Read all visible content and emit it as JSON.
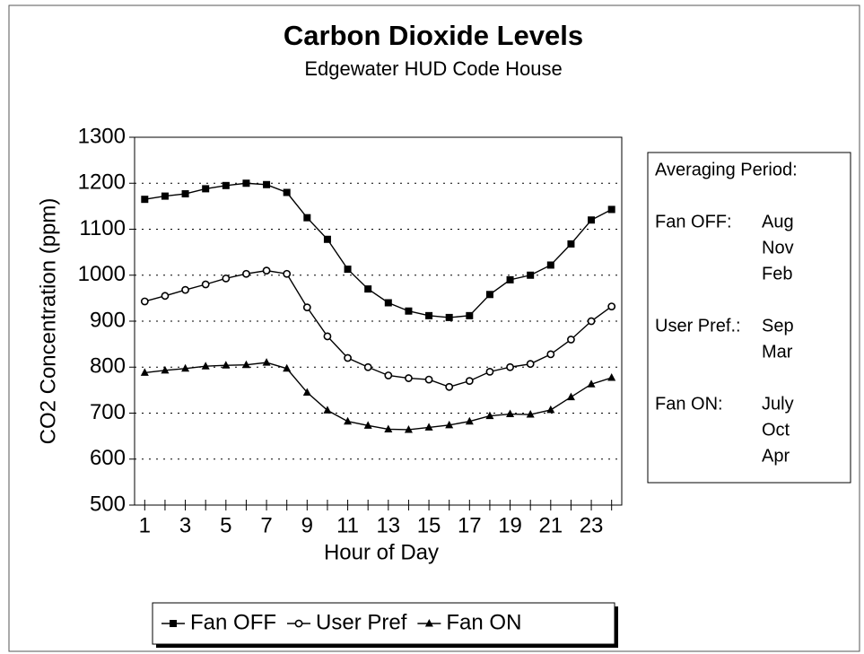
{
  "chart_data": {
    "type": "line",
    "title": "Carbon Dioxide Levels",
    "subtitle": "Edgewater HUD Code House",
    "x_label": "Hour of Day",
    "y_label": "CO2 Concentration (ppm)",
    "x": [
      1,
      2,
      3,
      4,
      5,
      6,
      7,
      8,
      9,
      10,
      11,
      12,
      13,
      14,
      15,
      16,
      17,
      18,
      19,
      20,
      21,
      22,
      23,
      24
    ],
    "xlim": [
      0.5,
      24.5
    ],
    "xticks": [
      1,
      3,
      5,
      7,
      9,
      11,
      13,
      15,
      17,
      19,
      21,
      23
    ],
    "ylim": [
      500,
      1300
    ],
    "yticks": [
      500,
      600,
      700,
      800,
      900,
      1000,
      1100,
      1200,
      1300
    ],
    "grid": true,
    "series": [
      {
        "name": "Fan OFF",
        "color": "#000000",
        "marker": "square",
        "values": [
          1165,
          1172,
          1177,
          1188,
          1195,
          1200,
          1197,
          1180,
          1125,
          1078,
          1013,
          970,
          940,
          922,
          912,
          908,
          912,
          958,
          990,
          1000,
          1022,
          1068,
          1120,
          1143
        ]
      },
      {
        "name": "User Pref",
        "color": "#000000",
        "marker": "circle",
        "values": [
          943,
          955,
          968,
          980,
          993,
          1003,
          1010,
          1003,
          930,
          867,
          820,
          800,
          782,
          776,
          773,
          757,
          770,
          790,
          800,
          807,
          828,
          860,
          900,
          932
        ]
      },
      {
        "name": "Fan ON",
        "color": "#000000",
        "marker": "triangle",
        "values": [
          788,
          793,
          797,
          802,
          804,
          805,
          810,
          797,
          745,
          706,
          682,
          673,
          665,
          664,
          669,
          674,
          682,
          694,
          698,
          697,
          707,
          735,
          763,
          777
        ]
      }
    ],
    "annotation": {
      "title": "Averaging Period:",
      "groups": [
        {
          "label": "Fan OFF:",
          "months": [
            "Aug",
            "Nov",
            "Feb"
          ]
        },
        {
          "label": "User Pref.:",
          "months": [
            "Sep",
            "Mar"
          ]
        },
        {
          "label": "Fan ON:",
          "months": [
            "July",
            "Oct",
            "Apr"
          ]
        }
      ]
    }
  }
}
